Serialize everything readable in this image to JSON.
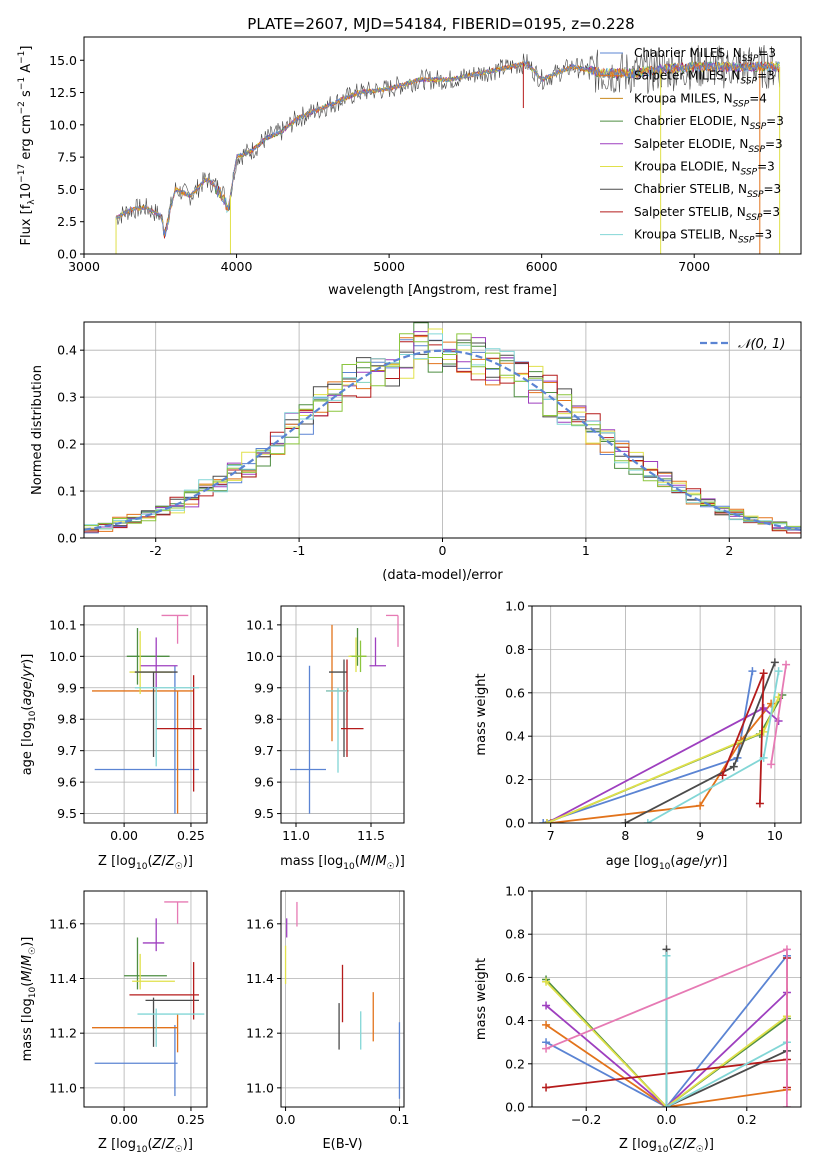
{
  "figure": {
    "title": "PLATE=2607, MJD=54184, FIBERID=0195, z=0.228"
  },
  "colors": {
    "Chabrier MILES": "#5b84d3",
    "Salpeter MILES": "#e2731b",
    "Kroupa MILES": "#c98a1e",
    "Chabrier ELODIE": "#4e8e42",
    "Salpeter ELODIE": "#9e3fbf",
    "Kroupa ELODIE": "#e0e04a",
    "Chabrier STELIB": "#4b4b4b",
    "Salpeter STELIB": "#b51b1b",
    "Kroupa STELIB": "#82d6d6",
    "pink": "#e67ab4",
    "lime": "#8cc63f"
  },
  "chart_data": [
    {
      "id": "spectrum",
      "type": "line",
      "title": "PLATE=2607, MJD=54184, FIBERID=0195, z=0.228",
      "xlabel": "wavelength [Angstrom, rest frame]",
      "ylabel": "Flux [f_λ 10^-17 erg cm^-2 s^-1 A^-1]",
      "xlim": [
        3000,
        7700
      ],
      "ylim": [
        0,
        16.8
      ],
      "xticks": [
        3000,
        4000,
        5000,
        6000,
        7000
      ],
      "yticks": [
        0.0,
        2.5,
        5.0,
        7.5,
        10.0,
        12.5,
        15.0
      ],
      "legend_position": "top-right",
      "legend": [
        "Chabrier MILES, N_SSP=3",
        "Salpeter MILES, N_SSP=3",
        "Kroupa MILES, N_SSP=4",
        "Chabrier ELODIE, N_SSP=3",
        "Salpeter ELODIE, N_SSP=3",
        "Kroupa ELODIE, N_SSP=3",
        "Chabrier STELIB, N_SSP=3",
        "Salpeter STELIB, N_SSP=3",
        "Kroupa STELIB, N_SSP=3"
      ],
      "spectrum_profile": {
        "x": [
          3210,
          3300,
          3400,
          3500,
          3530,
          3600,
          3700,
          3800,
          3900,
          3950,
          4000,
          4100,
          4200,
          4300,
          4400,
          4500,
          4600,
          4800,
          5000,
          5200,
          5400,
          5600,
          5800,
          5900,
          6000,
          6200,
          6400,
          6600,
          6800,
          7000,
          7200,
          7400
        ],
        "y": [
          2.8,
          3.4,
          3.6,
          3.0,
          2.0,
          5.0,
          4.5,
          5.8,
          5.0,
          3.8,
          7.5,
          8.0,
          9.0,
          9.5,
          10.5,
          11.0,
          11.5,
          12.5,
          12.8,
          13.5,
          13.5,
          14.0,
          14.5,
          14.8,
          13.5,
          14.5,
          14.0,
          14.0,
          14.3,
          14.5,
          14.5,
          14.5
        ]
      }
    },
    {
      "id": "residuals",
      "type": "line",
      "xlabel": "(data-model)/error",
      "ylabel": "Normed distribution",
      "xlim": [
        -2.5,
        2.5
      ],
      "ylim": [
        0,
        0.46
      ],
      "xticks": [
        -2,
        -1,
        0,
        1,
        2
      ],
      "yticks": [
        0.0,
        0.1,
        0.2,
        0.3,
        0.4
      ],
      "legend_position": "top-right",
      "legend": [
        "𝒩(0, 1)"
      ],
      "bin_width": 0.1
    },
    {
      "id": "age_vs_Z",
      "type": "scatter",
      "xlabel": "Z [log10(Z/Z☉)]",
      "ylabel": "age  [log10(age/yr)]",
      "xlim": [
        -0.15,
        0.31
      ],
      "ylim": [
        9.47,
        10.16
      ],
      "xticks": [
        0.0,
        0.25
      ],
      "xticklabels": [
        "0.00",
        "0.25"
      ],
      "yticks": [
        9.5,
        9.6,
        9.7,
        9.8,
        9.9,
        10.0,
        10.1
      ],
      "points": [
        {
          "c": "#5b84d3",
          "x": 0.19,
          "xe": [
            -0.11,
            0.28
          ],
          "y": 9.64,
          "ye": [
            9.5,
            9.97
          ]
        },
        {
          "c": "#e2731b",
          "x": 0.2,
          "xe": [
            -0.12,
            0.26
          ],
          "y": 9.89,
          "ye": [
            9.5,
            9.89
          ]
        },
        {
          "c": "#4e8e42",
          "x": 0.05,
          "xe": [
            0.01,
            0.17
          ],
          "y": 10.0,
          "ye": [
            9.91,
            10.09
          ]
        },
        {
          "c": "#9e3fbf",
          "x": 0.12,
          "xe": [
            0.06,
            0.2
          ],
          "y": 9.97,
          "ye": [
            9.9,
            10.06
          ]
        },
        {
          "c": "#e0e04a",
          "x": 0.06,
          "xe": [
            0.02,
            0.18
          ],
          "y": 9.95,
          "ye": [
            9.88,
            10.08
          ]
        },
        {
          "c": "#4b4b4b",
          "x": 0.11,
          "xe": [
            0.04,
            0.2
          ],
          "y": 9.95,
          "ye": [
            9.68,
            9.95
          ]
        },
        {
          "c": "#b51b1b",
          "x": 0.26,
          "xe": [
            0.12,
            0.29
          ],
          "y": 9.77,
          "ye": [
            9.57,
            9.94
          ]
        },
        {
          "c": "#82d6d6",
          "x": 0.12,
          "xe": [
            0.04,
            0.28
          ],
          "y": 9.9,
          "ye": [
            9.65,
            9.9
          ]
        },
        {
          "c": "#e67ab4",
          "x": 0.2,
          "xe": [
            0.14,
            0.24
          ],
          "y": 10.13,
          "ye": [
            10.04,
            10.13
          ]
        }
      ]
    },
    {
      "id": "age_vs_mass",
      "type": "scatter",
      "xlabel": "mass [log10(M/M☉)]",
      "ylabel": "",
      "xlim": [
        10.9,
        11.72
      ],
      "ylim": [
        9.47,
        10.16
      ],
      "xticks": [
        11.0,
        11.5
      ],
      "yticks": [
        9.5,
        9.6,
        9.7,
        9.8,
        9.9,
        10.0,
        10.1
      ],
      "points": [
        {
          "c": "#5b84d3",
          "x": 11.09,
          "xe": [
            10.96,
            11.2
          ],
          "y": 9.64,
          "ye": [
            9.5,
            9.97
          ]
        },
        {
          "c": "#e2731b",
          "x": 11.24,
          "xe": [
            11.2,
            11.35
          ],
          "y": 9.89,
          "ye": [
            9.73,
            10.1
          ]
        },
        {
          "c": "#4e8e42",
          "x": 11.41,
          "xe": [
            11.36,
            11.47
          ],
          "y": 10.0,
          "ye": [
            9.97,
            10.09
          ]
        },
        {
          "c": "#9e3fbf",
          "x": 11.53,
          "xe": [
            11.49,
            11.6
          ],
          "y": 9.97,
          "ye": [
            9.97,
            10.06
          ]
        },
        {
          "c": "#e0e04a",
          "x": 11.4,
          "xe": [
            11.35,
            11.47
          ],
          "y": 10.0,
          "ye": [
            9.95,
            10.06
          ]
        },
        {
          "c": "#4b4b4b",
          "x": 11.32,
          "xe": [
            11.22,
            11.34
          ],
          "y": 9.95,
          "ye": [
            9.68,
            9.99
          ]
        },
        {
          "c": "#b51b1b",
          "x": 11.34,
          "xe": [
            11.3,
            11.45
          ],
          "y": 9.77,
          "ye": [
            9.68,
            9.99
          ]
        },
        {
          "c": "#82d6d6",
          "x": 11.28,
          "xe": [
            11.2,
            11.34
          ],
          "y": 9.89,
          "ye": [
            9.63,
            9.9
          ]
        },
        {
          "c": "#e67ab4",
          "x": 11.68,
          "xe": [
            11.6,
            11.68
          ],
          "y": 10.13,
          "ye": [
            10.03,
            10.13
          ]
        },
        {
          "c": "#8cc63f",
          "x": 11.43,
          "xe": [
            11.37,
            11.47
          ],
          "y": 10.0,
          "ye": [
            9.95,
            10.05
          ]
        }
      ]
    },
    {
      "id": "weight_vs_age",
      "type": "line",
      "xlabel": "age  [log10(age/yr)]",
      "ylabel": "mass weight",
      "xlim": [
        6.75,
        10.35
      ],
      "ylim": [
        0,
        1.0
      ],
      "xticks": [
        7,
        8,
        9,
        10
      ],
      "yticks": [
        0.0,
        0.2,
        0.4,
        0.6,
        0.8,
        1.0
      ],
      "series": [
        {
          "c": "#5b84d3",
          "x": [
            6.9,
            9.5,
            9.7
          ],
          "y": [
            0.0,
            0.3,
            0.7
          ]
        },
        {
          "c": "#e2731b",
          "x": [
            7.0,
            9.0,
            9.55,
            9.95
          ],
          "y": [
            0.0,
            0.08,
            0.38,
            0.55
          ]
        },
        {
          "c": "#4e8e42",
          "x": [
            6.95,
            9.8,
            10.1
          ],
          "y": [
            0.0,
            0.41,
            0.59
          ]
        },
        {
          "c": "#9e3fbf",
          "x": [
            6.95,
            9.85,
            10.05
          ],
          "y": [
            0.0,
            0.53,
            0.47
          ]
        },
        {
          "c": "#e0e04a",
          "x": [
            6.95,
            9.85,
            10.05
          ],
          "y": [
            0.0,
            0.42,
            0.58
          ]
        },
        {
          "c": "#4b4b4b",
          "x": [
            8.0,
            9.45,
            10.0
          ],
          "y": [
            0.0,
            0.26,
            0.74
          ]
        },
        {
          "c": "#b51b1b",
          "x": [
            9.3,
            9.85,
            9.8
          ],
          "y": [
            0.22,
            0.69,
            0.09
          ]
        },
        {
          "c": "#82d6d6",
          "x": [
            8.3,
            9.85,
            10.05
          ],
          "y": [
            0.0,
            0.3,
            0.7
          ]
        },
        {
          "c": "#e67ab4",
          "x": [
            9.95,
            10.15
          ],
          "y": [
            0.27,
            0.73
          ]
        }
      ]
    },
    {
      "id": "mass_vs_Z",
      "type": "scatter",
      "xlabel": "Z [log10(Z/Z☉)]",
      "ylabel": "mass [log10(M/M☉)]",
      "xlim": [
        -0.15,
        0.31
      ],
      "ylim": [
        10.93,
        11.72
      ],
      "xticks": [
        0.0,
        0.25
      ],
      "xticklabels": [
        "0.00",
        "0.25"
      ],
      "yticks": [
        11.0,
        11.2,
        11.4,
        11.6
      ],
      "points": [
        {
          "c": "#5b84d3",
          "x": 0.19,
          "xe": [
            -0.11,
            0.2
          ],
          "y": 11.09,
          "ye": [
            10.97,
            11.23
          ]
        },
        {
          "c": "#e2731b",
          "x": 0.2,
          "xe": [
            -0.12,
            0.2
          ],
          "y": 11.22,
          "ye": [
            11.13,
            11.27
          ]
        },
        {
          "c": "#4e8e42",
          "x": 0.05,
          "xe": [
            0.0,
            0.16
          ],
          "y": 11.41,
          "ye": [
            11.36,
            11.55
          ]
        },
        {
          "c": "#9e3fbf",
          "x": 0.12,
          "xe": [
            0.07,
            0.15
          ],
          "y": 11.53,
          "ye": [
            11.5,
            11.62
          ]
        },
        {
          "c": "#e0e04a",
          "x": 0.06,
          "xe": [
            0.03,
            0.19
          ],
          "y": 11.39,
          "ye": [
            11.36,
            11.49
          ]
        },
        {
          "c": "#4b4b4b",
          "x": 0.11,
          "xe": [
            0.08,
            0.28
          ],
          "y": 11.32,
          "ye": [
            11.15,
            11.33
          ]
        },
        {
          "c": "#b51b1b",
          "x": 0.26,
          "xe": [
            0.02,
            0.28
          ],
          "y": 11.34,
          "ye": [
            11.25,
            11.46
          ]
        },
        {
          "c": "#82d6d6",
          "x": 0.12,
          "xe": [
            0.05,
            0.3
          ],
          "y": 11.27,
          "ye": [
            11.15,
            11.29
          ]
        },
        {
          "c": "#e67ab4",
          "x": 0.2,
          "xe": [
            0.15,
            0.24
          ],
          "y": 11.68,
          "ye": [
            11.6,
            11.68
          ]
        }
      ]
    },
    {
      "id": "mass_vs_ebv",
      "type": "scatter",
      "xlabel": "E(B-V)",
      "ylabel": "",
      "xlim": [
        -0.004,
        0.104
      ],
      "ylim": [
        10.93,
        11.72
      ],
      "xticks": [
        0.0,
        0.1
      ],
      "yticks": [
        11.0,
        11.2,
        11.4,
        11.6
      ],
      "points": [
        {
          "c": "#5b84d3",
          "x": 0.1,
          "ye": [
            10.96,
            11.24
          ]
        },
        {
          "c": "#e2731b",
          "x": 0.077,
          "ye": [
            11.17,
            11.35
          ]
        },
        {
          "c": "#4b4b4b",
          "x": 0.047,
          "ye": [
            11.14,
            11.31
          ]
        },
        {
          "c": "#b51b1b",
          "x": 0.05,
          "ye": [
            11.24,
            11.45
          ]
        },
        {
          "c": "#82d6d6",
          "x": 0.066,
          "ye": [
            11.14,
            11.28
          ]
        },
        {
          "c": "#9e3fbf",
          "x": 0.001,
          "ye": [
            11.55,
            11.62
          ]
        },
        {
          "c": "#e67ab4",
          "x": 0.01,
          "ye": [
            11.59,
            11.68
          ]
        },
        {
          "c": "#e0e04a",
          "x": 0.0,
          "ye": [
            11.38,
            11.52
          ]
        }
      ]
    },
    {
      "id": "weight_vs_Z",
      "type": "line",
      "xlabel": "Z [log10(Z/Z☉)]",
      "ylabel": "mass weight",
      "xlim": [
        -0.335,
        0.335
      ],
      "ylim": [
        0,
        1.0
      ],
      "xticks": [
        -0.2,
        0.0,
        0.2
      ],
      "xticklabels": [
        "−0.2",
        "0.0",
        "0.2"
      ],
      "yticks": [
        0.0,
        0.2,
        0.4,
        0.6,
        0.8,
        1.0
      ],
      "series": [
        {
          "c": "#5b84d3",
          "x": [
            -0.3,
            0.0,
            0.3
          ],
          "y": [
            0.3,
            0.0,
            0.7
          ]
        },
        {
          "c": "#e2731b",
          "x": [
            -0.3,
            0.0,
            0.3
          ],
          "y": [
            0.38,
            0.0,
            0.08
          ]
        },
        {
          "c": "#4e8e42",
          "x": [
            -0.3,
            0.0,
            0.3
          ],
          "y": [
            0.59,
            0.0,
            0.41
          ]
        },
        {
          "c": "#9e3fbf",
          "x": [
            -0.3,
            0.0,
            0.3
          ],
          "y": [
            0.47,
            0.0,
            0.53
          ]
        },
        {
          "c": "#e0e04a",
          "x": [
            -0.3,
            0.0,
            0.3
          ],
          "y": [
            0.58,
            0.0,
            0.42
          ]
        },
        {
          "c": "#4b4b4b",
          "x": [
            0.0,
            0.0,
            0.3
          ],
          "y": [
            0.73,
            0.0,
            0.26
          ]
        },
        {
          "c": "#b51b1b",
          "x": [
            -0.3,
            0.3,
            0.3,
            0.3
          ],
          "y": [
            0.09,
            0.22,
            0.69,
            0.09
          ]
        },
        {
          "c": "#82d6d6",
          "x": [
            0.0,
            0.0,
            0.3
          ],
          "y": [
            0.7,
            0.0,
            0.3
          ]
        },
        {
          "c": "#e67ab4",
          "x": [
            -0.3,
            0.3,
            0.3
          ],
          "y": [
            0.27,
            0.73,
            0.0
          ]
        }
      ]
    }
  ]
}
